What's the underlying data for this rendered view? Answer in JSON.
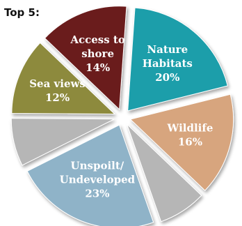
{
  "heading": "Top 5:",
  "chart_data": {
    "type": "pie",
    "title": "Top 5:",
    "exploded": true,
    "slices": [
      {
        "lines": [
          "Nature",
          "Habitats",
          "20%"
        ],
        "value": 20,
        "color": "#1b9eaa"
      },
      {
        "lines": [
          "Wildlife",
          "16%"
        ],
        "value": 16,
        "color": "#d7a57e"
      },
      {
        "lines": [],
        "value": 7.5,
        "color": "#b6b6b6"
      },
      {
        "lines": [
          "Unspoilt/",
          "Undeveloped",
          "23%"
        ],
        "value": 23,
        "color": "#8fb3c8"
      },
      {
        "lines": [],
        "value": 7.5,
        "color": "#b6b6b6"
      },
      {
        "lines": [
          "Sea views",
          "12%"
        ],
        "value": 12,
        "color": "#8d8a3c"
      },
      {
        "lines": [
          "Access to",
          "shore",
          "14%"
        ],
        "value": 14,
        "color": "#6a1a1d"
      }
    ]
  }
}
